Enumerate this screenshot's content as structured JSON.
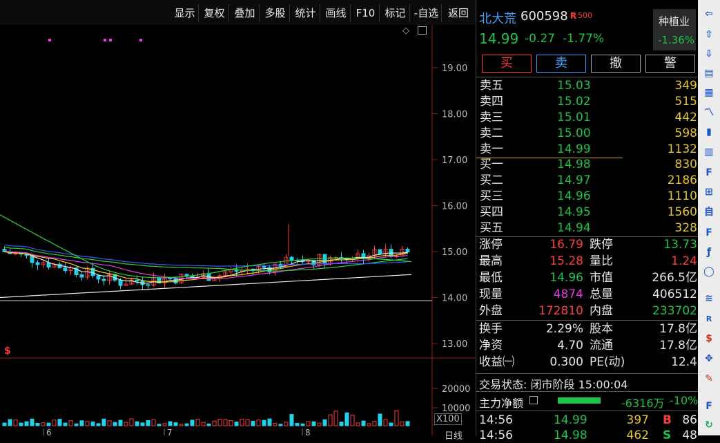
{
  "toolbar": {
    "items": [
      "显示",
      "复权",
      "叠加",
      "多股",
      "统计",
      "画线",
      "F10",
      "标记",
      "-自选",
      "返回"
    ]
  },
  "chart": {
    "price_ticks": [
      "19.00",
      "18.00",
      "17.00",
      "16.00",
      "15.00",
      "14.00",
      "13.00"
    ],
    "vol_ticks": [
      "20000",
      "10000"
    ],
    "vol_unit": "X100",
    "period": "日线",
    "x_labels": [
      "6",
      "7",
      "8"
    ],
    "signal_mark": "$",
    "colors": {
      "up": "#ff3c3c",
      "down": "#22d0e8",
      "ma5": "#e8e8e8",
      "ma10": "#f2d21e",
      "ma20": "#e23ce2",
      "ma60": "#2ad43a",
      "ma120": "#3a58ff",
      "ma250": "#e8e8e8"
    }
  },
  "stock": {
    "name": "北大荒",
    "code": "600598",
    "badge_r": "R",
    "badge_num": "500",
    "price": "14.99",
    "change": "-0.27",
    "change_pct": "-1.77%",
    "sector": "种植业",
    "sector_pct": "-1.36%"
  },
  "actions": {
    "buy": "买",
    "sell": "卖",
    "cancel": "撤",
    "alert": "警"
  },
  "asks": [
    {
      "label": "卖五",
      "price": "15.03",
      "vol": "349"
    },
    {
      "label": "卖四",
      "price": "15.02",
      "vol": "515"
    },
    {
      "label": "卖三",
      "price": "15.01",
      "vol": "442"
    },
    {
      "label": "卖二",
      "price": "15.00",
      "vol": "598"
    },
    {
      "label": "卖一",
      "price": "14.99",
      "vol": "1132"
    }
  ],
  "bids": [
    {
      "label": "买一",
      "price": "14.98",
      "vol": "830"
    },
    {
      "label": "买二",
      "price": "14.97",
      "vol": "2186"
    },
    {
      "label": "买三",
      "price": "14.96",
      "vol": "1110"
    },
    {
      "label": "买四",
      "price": "14.95",
      "vol": "1560"
    },
    {
      "label": "买五",
      "price": "14.94",
      "vol": "328"
    }
  ],
  "stats": {
    "limit_up_label": "涨停",
    "limit_up": "16.79",
    "limit_down_label": "跌停",
    "limit_down": "13.73",
    "high_label": "最高",
    "high": "15.28",
    "vol_ratio_label": "量比",
    "vol_ratio": "1.24",
    "low_label": "最低",
    "low": "14.96",
    "mkt_cap_label": "市值",
    "mkt_cap": "266.5亿",
    "cur_vol_label": "现量",
    "cur_vol": "4874",
    "total_vol_label": "总量",
    "total_vol": "406512",
    "outer_label": "外盘",
    "outer": "172810",
    "inner_label": "内盘",
    "inner": "233702",
    "turnover_label": "换手",
    "turnover": "2.29%",
    "share_cap_label": "股本",
    "share_cap": "17.8亿",
    "nav_label": "净资",
    "nav": "4.70",
    "float_label": "流通",
    "float": "17.8亿",
    "eps_label": "收益㈠",
    "eps": "0.300",
    "pe_label": "PE(动)",
    "pe": "12.4"
  },
  "trade_status": "交易状态: 闭市阶段 15:00:04",
  "main_flow": {
    "label": "主力净额",
    "value": "-6316万",
    "pct": "-10%",
    "green": "#1fc24a"
  },
  "ticks": [
    {
      "time": "14:56",
      "price": "14.99",
      "vol": "397",
      "side": "B",
      "num": "86"
    },
    {
      "time": "14:56",
      "price": "14.98",
      "vol": "462",
      "side": "S",
      "num": "48"
    }
  ],
  "sidebar_icons": [
    "left-arrow-icon",
    "up-arrow-icon",
    "down-arrow-icon",
    "list-icon",
    "grid-icon",
    "line-chart-icon",
    "candle-icon",
    "news-icon",
    "f10-icon",
    "tree-icon",
    "self-icon",
    "f12-icon",
    "formula-icon",
    "circle-icon",
    "macd-icon",
    "rsi-icon",
    "money-icon",
    "move-icon",
    "pen-icon",
    "f5-icon",
    "refresh-icon"
  ]
}
